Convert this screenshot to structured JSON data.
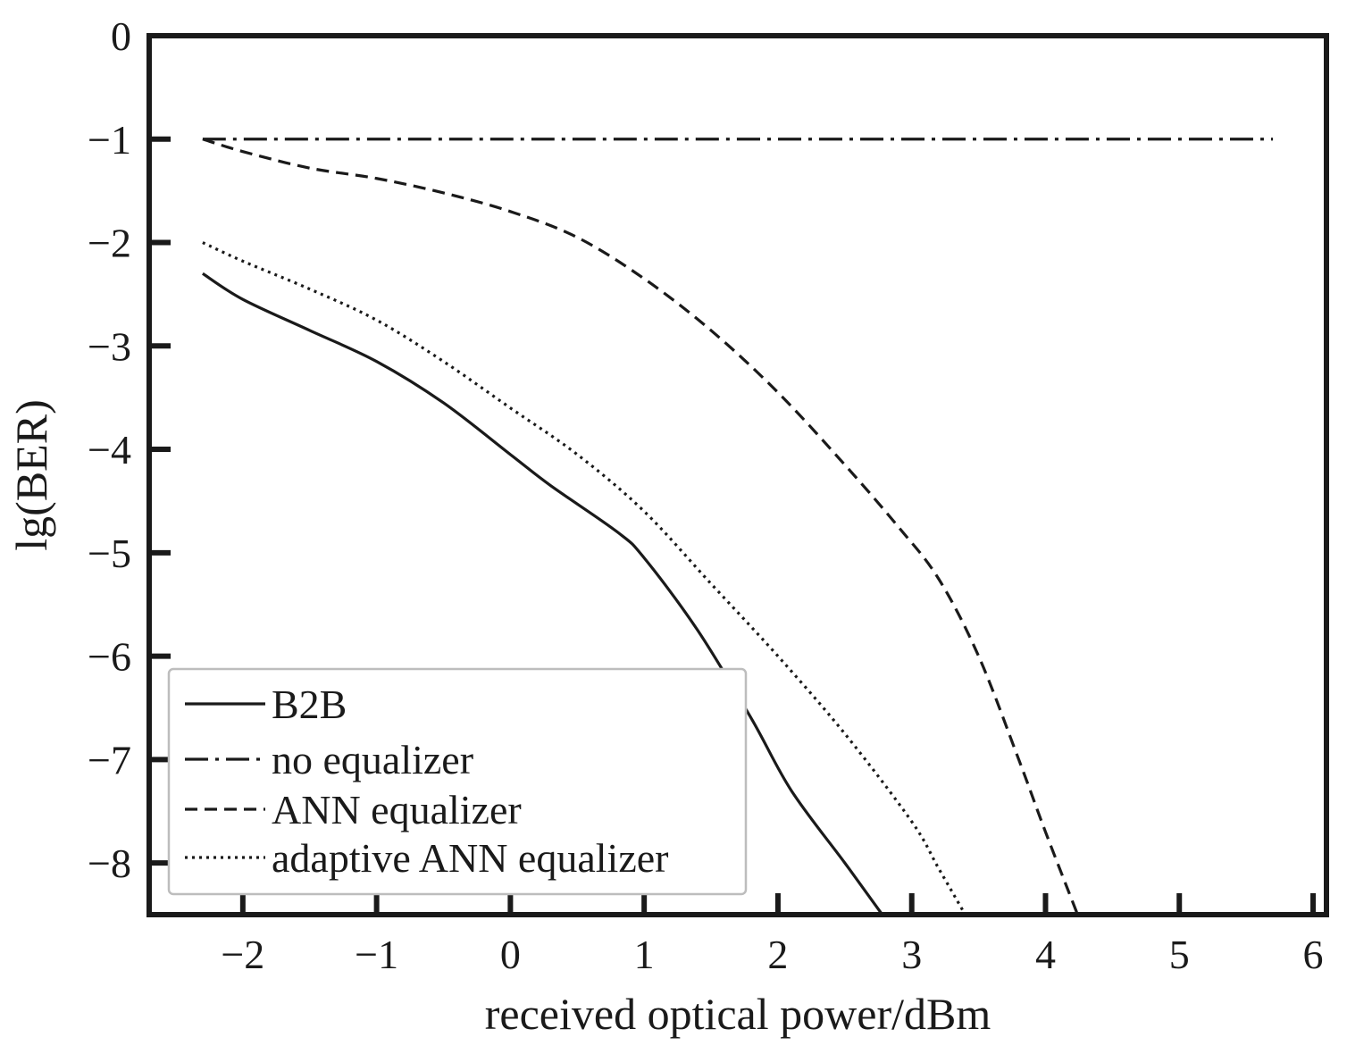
{
  "chart_data": {
    "type": "line",
    "title": "",
    "xlabel": "received optical power/dBm",
    "ylabel": "lg(BER)",
    "xlim": [
      -2.7,
      6.1
    ],
    "ylim": [
      -8.5,
      0
    ],
    "x_ticks": [
      -2,
      -1,
      0,
      1,
      2,
      3,
      4,
      5,
      6
    ],
    "y_ticks": [
      0,
      -1,
      -2,
      -3,
      -4,
      -5,
      -6,
      -7,
      -8
    ],
    "x_tick_labels": [
      "−2",
      "−1",
      "0",
      "1",
      "2",
      "3",
      "4",
      "5",
      "6"
    ],
    "y_tick_labels": [
      "0",
      "−1",
      "−2",
      "−3",
      "−4",
      "−5",
      "−6",
      "−7",
      "−8"
    ],
    "grid": false,
    "legend_position": "bottom-left",
    "series": [
      {
        "name": "B2B",
        "style": "solid",
        "color": "#1a1a1a",
        "x": [
          -2.3,
          -2.0,
          -1.5,
          -1.0,
          -0.5,
          0.0,
          0.3,
          0.8,
          1.0,
          1.4,
          1.8,
          2.1,
          2.5,
          2.78
        ],
        "y": [
          -2.3,
          -2.55,
          -2.85,
          -3.15,
          -3.55,
          -4.05,
          -4.35,
          -4.8,
          -5.05,
          -5.75,
          -6.6,
          -7.3,
          -8.0,
          -8.5
        ]
      },
      {
        "name": "no equalizer",
        "style": "dashdot",
        "color": "#1a1a1a",
        "x": [
          -2.3,
          5.7
        ],
        "y": [
          -1.0,
          -1.0
        ]
      },
      {
        "name": "ANN equalizer",
        "style": "dashed",
        "color": "#1a1a1a",
        "x": [
          -2.3,
          -2.0,
          -1.5,
          -1.0,
          -0.5,
          0.0,
          0.5,
          1.0,
          1.5,
          2.0,
          2.5,
          2.9,
          3.2,
          3.5,
          3.8,
          4.0,
          4.24
        ],
        "y": [
          -1.0,
          -1.12,
          -1.28,
          -1.38,
          -1.52,
          -1.7,
          -1.95,
          -2.35,
          -2.85,
          -3.45,
          -4.15,
          -4.75,
          -5.25,
          -6.0,
          -7.0,
          -7.7,
          -8.5
        ]
      },
      {
        "name": "adaptive ANN equalizer",
        "style": "dotted",
        "color": "#1a1a1a",
        "x": [
          -2.3,
          -2.0,
          -1.5,
          -1.0,
          -0.5,
          0.0,
          0.5,
          1.0,
          1.5,
          2.0,
          2.5,
          3.0,
          3.2,
          3.4
        ],
        "y": [
          -2.0,
          -2.18,
          -2.45,
          -2.75,
          -3.15,
          -3.6,
          -4.05,
          -4.6,
          -5.3,
          -6.0,
          -6.75,
          -7.6,
          -8.05,
          -8.5
        ]
      }
    ]
  }
}
